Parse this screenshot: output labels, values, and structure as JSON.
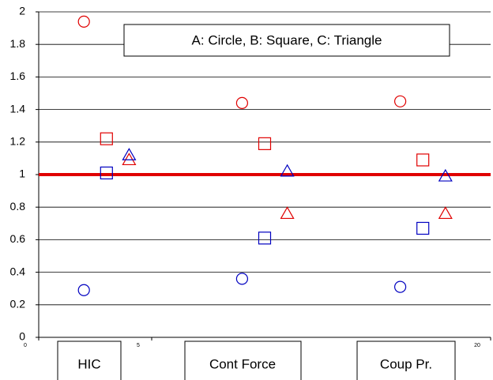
{
  "chart_data": {
    "type": "scatter",
    "annotations": [
      "A: Circle,  B: Square,  C: Triangle",
      "HIC",
      "Cont Force",
      "Coup Pr."
    ],
    "xlim": [
      0,
      20
    ],
    "xticks": [
      0,
      5,
      20
    ],
    "ylim": [
      0,
      2
    ],
    "yticks": [
      0,
      0.2,
      0.4,
      0.6,
      0.8,
      1,
      1.2,
      1.4,
      1.6,
      1.8,
      2
    ],
    "grid": true,
    "series": [
      {
        "marker": "circle",
        "color": "#e00000",
        "x": [
          2,
          9,
          16
        ],
        "values": [
          1.94,
          1.44,
          1.45
        ]
      },
      {
        "marker": "circle",
        "color": "#0000c0",
        "x": [
          2,
          9,
          16
        ],
        "values": [
          0.29,
          0.36,
          0.31
        ]
      },
      {
        "marker": "square",
        "color": "#e00000",
        "x": [
          3,
          10,
          17
        ],
        "values": [
          1.22,
          1.19,
          1.09
        ]
      },
      {
        "marker": "square",
        "color": "#0000c0",
        "x": [
          3,
          10,
          17
        ],
        "values": [
          1.01,
          0.61,
          0.67
        ]
      },
      {
        "marker": "triangle",
        "color": "#e00000",
        "x": [
          4,
          11,
          18
        ],
        "values": [
          1.09,
          0.76,
          0.76
        ]
      },
      {
        "marker": "triangle",
        "color": "#0000c0",
        "x": [
          4,
          11,
          18
        ],
        "values": [
          1.12,
          1.02,
          0.99
        ]
      },
      {
        "marker": "line",
        "color": "#e00000",
        "x": [
          0,
          20
        ],
        "values": [
          1,
          1
        ]
      }
    ]
  }
}
